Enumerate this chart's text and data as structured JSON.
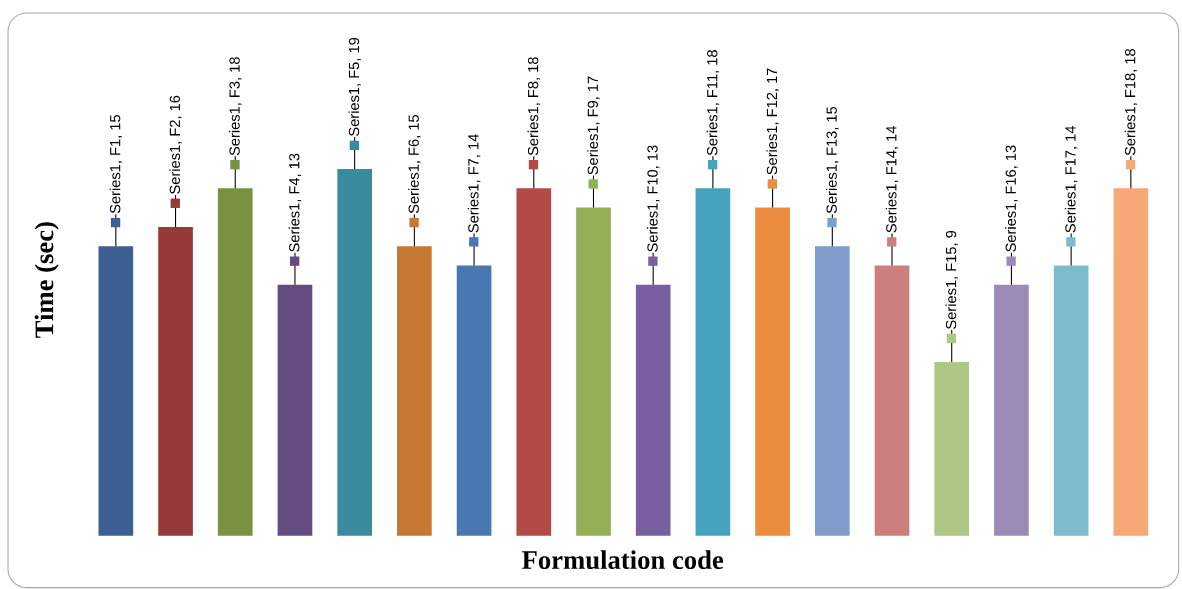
{
  "chart_data": {
    "type": "bar",
    "xlabel": "Formulation code",
    "ylabel": "Time (sec)",
    "categories": [
      null,
      null,
      null,
      null,
      null,
      null,
      null,
      null,
      null,
      null,
      null,
      null,
      null,
      null,
      null,
      null,
      null,
      null
    ],
    "values": [
      15,
      16,
      18,
      13,
      19,
      15,
      14,
      18,
      17,
      13,
      18,
      17,
      15,
      14,
      9,
      13,
      14,
      18
    ],
    "colors": [
      "#3d5f94",
      "#963a37",
      "#7a9140",
      "#634c7f",
      "#398a9c",
      "#c67734",
      "#4a76b2",
      "#b24a47",
      "#92b055",
      "#7860a0",
      "#46a3bd",
      "#eb8c3e",
      "#7f9ccb",
      "#cd7f7e",
      "#aec784",
      "#9b8ab7",
      "#7dbccf",
      "#f7a877"
    ],
    "value_labels": [
      "Series1, F1, 15",
      "Series1, F2, 16",
      "Series1, F3, 18",
      "Series1, F4, 13",
      "Series1, F5, 19",
      "Series1, F6, 15",
      "Series1, F7, 14",
      "Series1, F8, 18",
      "Series1, F9, 17",
      "Series1, F10, 13",
      "Series1, F11, 18",
      "Series1, F12, 17",
      "Series1, F13, 15",
      "Series1, F14, 14",
      "Series1, F15, 9",
      "Series1, F16, 13",
      "Series1, F17, 14",
      "Series1, F18, 18"
    ]
  }
}
